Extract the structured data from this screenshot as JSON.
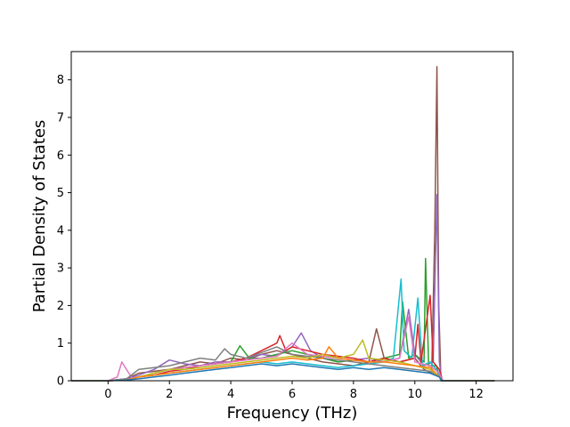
{
  "chart_data": {
    "type": "line",
    "title": "",
    "xlabel": "Frequency (THz)",
    "ylabel": "Partial Density of States",
    "xlim": [
      -1.2,
      13.2
    ],
    "ylim": [
      0,
      8.75
    ],
    "xticks": [
      0,
      2,
      4,
      6,
      8,
      10,
      12
    ],
    "yticks": [
      0,
      1,
      2,
      3,
      4,
      5,
      6,
      7,
      8
    ],
    "grid": false,
    "legend": "none",
    "x_range_of_data": [
      -1.2,
      12.6
    ],
    "colors": [
      "#1f77b4",
      "#ff7f0e",
      "#2ca02c",
      "#d62728",
      "#9467bd",
      "#8c564b",
      "#e377c2",
      "#7f7f7f",
      "#bcbd22",
      "#17becf"
    ],
    "series": [
      {
        "color": "#8c564b",
        "points": [
          [
            -1.2,
            0
          ],
          [
            0.0,
            0
          ],
          [
            0.6,
            0.05
          ],
          [
            1.0,
            0.2
          ],
          [
            1.5,
            0.25
          ],
          [
            2.0,
            0.3
          ],
          [
            2.5,
            0.4
          ],
          [
            3.0,
            0.5
          ],
          [
            3.5,
            0.45
          ],
          [
            4.0,
            0.6
          ],
          [
            4.5,
            0.55
          ],
          [
            5.0,
            0.7
          ],
          [
            5.5,
            0.8
          ],
          [
            6.0,
            0.7
          ],
          [
            6.5,
            0.6
          ],
          [
            7.0,
            0.5
          ],
          [
            7.5,
            0.45
          ],
          [
            8.0,
            0.4
          ],
          [
            8.5,
            0.5
          ],
          [
            8.75,
            1.38
          ],
          [
            9.0,
            0.6
          ],
          [
            9.5,
            0.5
          ],
          [
            10.0,
            0.6
          ],
          [
            10.3,
            0.3
          ],
          [
            10.55,
            0.2
          ],
          [
            10.65,
            4.0
          ],
          [
            10.72,
            8.35
          ],
          [
            10.78,
            2.0
          ],
          [
            10.85,
            0
          ],
          [
            12.6,
            0
          ]
        ]
      },
      {
        "color": "#9467bd",
        "points": [
          [
            -1.2,
            0
          ],
          [
            0.0,
            0
          ],
          [
            0.6,
            0.05
          ],
          [
            1.0,
            0.15
          ],
          [
            1.5,
            0.3
          ],
          [
            2.0,
            0.55
          ],
          [
            2.5,
            0.45
          ],
          [
            3.0,
            0.4
          ],
          [
            3.5,
            0.5
          ],
          [
            4.0,
            0.5
          ],
          [
            4.5,
            0.6
          ],
          [
            5.0,
            0.7
          ],
          [
            5.5,
            0.65
          ],
          [
            6.0,
            0.9
          ],
          [
            6.3,
            1.27
          ],
          [
            6.6,
            0.8
          ],
          [
            7.0,
            0.6
          ],
          [
            7.5,
            0.5
          ],
          [
            8.0,
            0.55
          ],
          [
            8.5,
            0.6
          ],
          [
            9.0,
            0.5
          ],
          [
            9.5,
            0.6
          ],
          [
            9.8,
            1.9
          ],
          [
            10.0,
            0.7
          ],
          [
            10.3,
            0.4
          ],
          [
            10.6,
            0.5
          ],
          [
            10.72,
            4.95
          ],
          [
            10.8,
            0.5
          ],
          [
            10.88,
            0
          ],
          [
            12.6,
            0
          ]
        ]
      },
      {
        "color": "#2ca02c",
        "points": [
          [
            -1.2,
            0
          ],
          [
            0.0,
            0
          ],
          [
            0.6,
            0.02
          ],
          [
            1.0,
            0.1
          ],
          [
            1.5,
            0.2
          ],
          [
            2.0,
            0.3
          ],
          [
            2.5,
            0.35
          ],
          [
            3.0,
            0.4
          ],
          [
            3.5,
            0.45
          ],
          [
            4.0,
            0.5
          ],
          [
            4.3,
            0.93
          ],
          [
            4.6,
            0.6
          ],
          [
            5.0,
            0.6
          ],
          [
            5.5,
            0.7
          ],
          [
            6.0,
            0.8
          ],
          [
            6.5,
            0.7
          ],
          [
            7.0,
            0.6
          ],
          [
            7.5,
            0.5
          ],
          [
            8.0,
            0.55
          ],
          [
            8.5,
            0.5
          ],
          [
            9.0,
            0.6
          ],
          [
            9.5,
            0.7
          ],
          [
            9.6,
            2.1
          ],
          [
            9.8,
            0.6
          ],
          [
            10.0,
            0.7
          ],
          [
            10.3,
            0.5
          ],
          [
            10.35,
            3.25
          ],
          [
            10.45,
            0.4
          ],
          [
            10.7,
            0.4
          ],
          [
            10.85,
            0
          ],
          [
            12.6,
            0
          ]
        ]
      },
      {
        "color": "#17becf",
        "points": [
          [
            -1.2,
            0
          ],
          [
            0.0,
            0
          ],
          [
            0.6,
            0.02
          ],
          [
            1.0,
            0.1
          ],
          [
            1.5,
            0.15
          ],
          [
            2.0,
            0.2
          ],
          [
            2.5,
            0.25
          ],
          [
            3.0,
            0.3
          ],
          [
            3.5,
            0.35
          ],
          [
            4.0,
            0.4
          ],
          [
            4.5,
            0.45
          ],
          [
            5.0,
            0.5
          ],
          [
            5.5,
            0.45
          ],
          [
            6.0,
            0.5
          ],
          [
            6.5,
            0.45
          ],
          [
            7.0,
            0.4
          ],
          [
            7.5,
            0.35
          ],
          [
            8.0,
            0.4
          ],
          [
            8.5,
            0.45
          ],
          [
            9.0,
            0.5
          ],
          [
            9.3,
            0.6
          ],
          [
            9.55,
            2.7
          ],
          [
            9.65,
            0.8
          ],
          [
            9.9,
            0.6
          ],
          [
            10.1,
            2.2
          ],
          [
            10.25,
            0.4
          ],
          [
            10.5,
            0.5
          ],
          [
            10.7,
            0.3
          ],
          [
            10.85,
            0
          ],
          [
            12.6,
            0
          ]
        ]
      },
      {
        "color": "#d62728",
        "points": [
          [
            -1.2,
            0
          ],
          [
            0.0,
            0
          ],
          [
            0.6,
            0.02
          ],
          [
            1.0,
            0.1
          ],
          [
            1.5,
            0.15
          ],
          [
            2.0,
            0.25
          ],
          [
            2.5,
            0.3
          ],
          [
            3.0,
            0.4
          ],
          [
            3.5,
            0.45
          ],
          [
            4.0,
            0.5
          ],
          [
            4.5,
            0.6
          ],
          [
            5.0,
            0.8
          ],
          [
            5.5,
            1.0
          ],
          [
            5.6,
            1.2
          ],
          [
            5.8,
            0.8
          ],
          [
            6.0,
            0.9
          ],
          [
            6.5,
            0.8
          ],
          [
            7.0,
            0.7
          ],
          [
            7.5,
            0.65
          ],
          [
            8.0,
            0.6
          ],
          [
            8.5,
            0.5
          ],
          [
            9.0,
            0.6
          ],
          [
            9.5,
            0.5
          ],
          [
            10.0,
            0.6
          ],
          [
            10.1,
            1.5
          ],
          [
            10.2,
            0.5
          ],
          [
            10.5,
            2.27
          ],
          [
            10.6,
            0.5
          ],
          [
            10.8,
            0.3
          ],
          [
            10.9,
            0
          ],
          [
            12.6,
            0
          ]
        ]
      },
      {
        "color": "#e377c2",
        "points": [
          [
            -1.2,
            0
          ],
          [
            0.0,
            0
          ],
          [
            0.3,
            0.1
          ],
          [
            0.45,
            0.5
          ],
          [
            0.6,
            0.3
          ],
          [
            0.8,
            0.05
          ],
          [
            1.0,
            0.1
          ],
          [
            1.5,
            0.2
          ],
          [
            2.0,
            0.3
          ],
          [
            2.5,
            0.35
          ],
          [
            3.0,
            0.4
          ],
          [
            3.5,
            0.45
          ],
          [
            4.0,
            0.5
          ],
          [
            4.5,
            0.55
          ],
          [
            5.0,
            0.6
          ],
          [
            5.5,
            0.65
          ],
          [
            6.0,
            1.0
          ],
          [
            6.5,
            0.7
          ],
          [
            7.0,
            0.65
          ],
          [
            7.5,
            0.6
          ],
          [
            8.0,
            0.55
          ],
          [
            8.5,
            0.5
          ],
          [
            9.0,
            0.5
          ],
          [
            9.5,
            0.6
          ],
          [
            9.8,
            1.7
          ],
          [
            10.0,
            0.5
          ],
          [
            10.5,
            0.4
          ],
          [
            10.8,
            0.2
          ],
          [
            10.9,
            0
          ],
          [
            12.6,
            0
          ]
        ]
      },
      {
        "color": "#7f7f7f",
        "points": [
          [
            -1.2,
            0
          ],
          [
            0.0,
            0
          ],
          [
            0.6,
            0.05
          ],
          [
            1.0,
            0.3
          ],
          [
            1.5,
            0.35
          ],
          [
            2.0,
            0.4
          ],
          [
            2.5,
            0.5
          ],
          [
            3.0,
            0.6
          ],
          [
            3.5,
            0.55
          ],
          [
            3.8,
            0.85
          ],
          [
            4.0,
            0.7
          ],
          [
            4.5,
            0.6
          ],
          [
            5.0,
            0.75
          ],
          [
            5.5,
            0.9
          ],
          [
            6.0,
            0.7
          ],
          [
            6.5,
            0.65
          ],
          [
            7.0,
            0.6
          ],
          [
            7.5,
            0.55
          ],
          [
            8.0,
            0.5
          ],
          [
            8.5,
            0.45
          ],
          [
            9.0,
            0.4
          ],
          [
            9.5,
            0.35
          ],
          [
            10.0,
            0.3
          ],
          [
            10.5,
            0.25
          ],
          [
            10.8,
            0.1
          ],
          [
            10.9,
            0
          ],
          [
            12.6,
            0
          ]
        ]
      },
      {
        "color": "#bcbd22",
        "points": [
          [
            -1.2,
            0
          ],
          [
            0.0,
            0
          ],
          [
            0.6,
            0.02
          ],
          [
            1.0,
            0.1
          ],
          [
            1.5,
            0.2
          ],
          [
            2.0,
            0.3
          ],
          [
            2.5,
            0.3
          ],
          [
            3.0,
            0.35
          ],
          [
            3.5,
            0.4
          ],
          [
            4.0,
            0.45
          ],
          [
            4.5,
            0.5
          ],
          [
            5.0,
            0.55
          ],
          [
            5.5,
            0.6
          ],
          [
            6.0,
            0.65
          ],
          [
            6.5,
            0.6
          ],
          [
            7.0,
            0.7
          ],
          [
            7.5,
            0.6
          ],
          [
            8.0,
            0.7
          ],
          [
            8.3,
            1.08
          ],
          [
            8.5,
            0.6
          ],
          [
            9.0,
            0.55
          ],
          [
            9.5,
            0.5
          ],
          [
            10.0,
            0.4
          ],
          [
            10.5,
            0.3
          ],
          [
            10.8,
            0.1
          ],
          [
            10.9,
            0
          ],
          [
            12.6,
            0
          ]
        ]
      },
      {
        "color": "#ff7f0e",
        "points": [
          [
            -1.2,
            0
          ],
          [
            0.0,
            0
          ],
          [
            0.6,
            0.02
          ],
          [
            1.0,
            0.1
          ],
          [
            1.5,
            0.15
          ],
          [
            2.0,
            0.2
          ],
          [
            2.5,
            0.25
          ],
          [
            3.0,
            0.3
          ],
          [
            3.5,
            0.35
          ],
          [
            4.0,
            0.4
          ],
          [
            4.5,
            0.45
          ],
          [
            5.0,
            0.5
          ],
          [
            5.5,
            0.55
          ],
          [
            6.0,
            0.6
          ],
          [
            6.5,
            0.55
          ],
          [
            7.0,
            0.6
          ],
          [
            7.2,
            0.9
          ],
          [
            7.5,
            0.6
          ],
          [
            8.0,
            0.55
          ],
          [
            8.5,
            0.5
          ],
          [
            9.0,
            0.5
          ],
          [
            9.5,
            0.45
          ],
          [
            10.0,
            0.4
          ],
          [
            10.5,
            0.35
          ],
          [
            10.8,
            0.1
          ],
          [
            10.9,
            0
          ],
          [
            12.6,
            0
          ]
        ]
      },
      {
        "color": "#1f77b4",
        "points": [
          [
            -1.2,
            0
          ],
          [
            0.0,
            0
          ],
          [
            0.6,
            0.02
          ],
          [
            1.0,
            0.05
          ],
          [
            1.5,
            0.1
          ],
          [
            2.0,
            0.15
          ],
          [
            2.5,
            0.2
          ],
          [
            3.0,
            0.25
          ],
          [
            3.5,
            0.3
          ],
          [
            4.0,
            0.35
          ],
          [
            4.5,
            0.4
          ],
          [
            5.0,
            0.45
          ],
          [
            5.5,
            0.4
          ],
          [
            6.0,
            0.45
          ],
          [
            6.5,
            0.4
          ],
          [
            7.0,
            0.35
          ],
          [
            7.5,
            0.3
          ],
          [
            8.0,
            0.35
          ],
          [
            8.5,
            0.3
          ],
          [
            9.0,
            0.35
          ],
          [
            9.5,
            0.3
          ],
          [
            10.0,
            0.25
          ],
          [
            10.5,
            0.2
          ],
          [
            10.8,
            0.1
          ],
          [
            10.9,
            0
          ],
          [
            12.6,
            0
          ]
        ]
      }
    ]
  }
}
